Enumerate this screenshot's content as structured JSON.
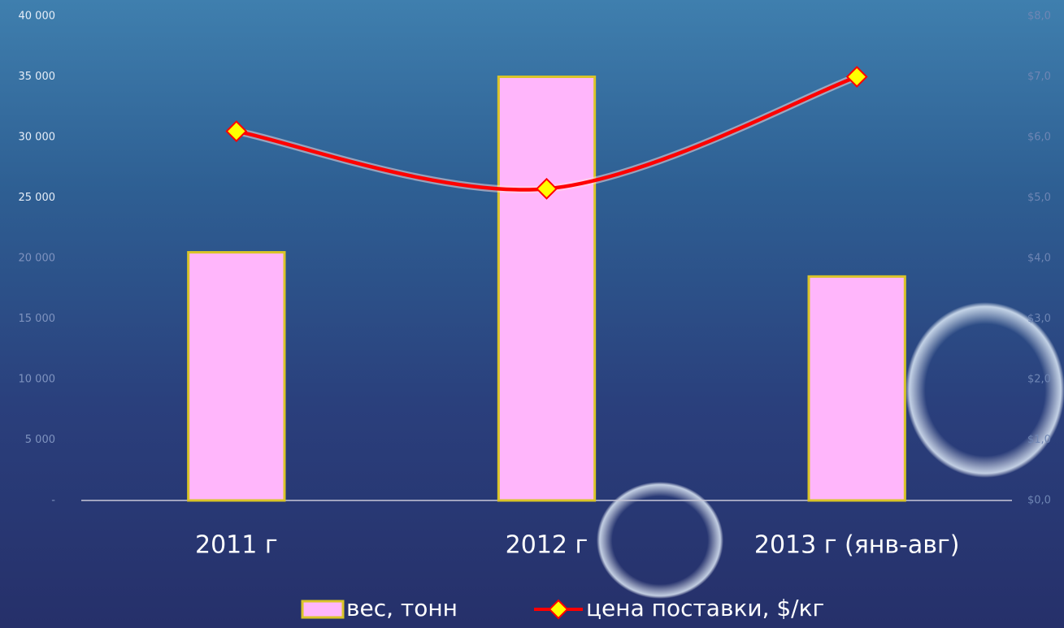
{
  "chart_data": {
    "type": "bar-line",
    "categories": [
      "2011 г",
      "2012 г",
      "2013 г (янв-авг)"
    ],
    "series": [
      {
        "name": "вес, тонн",
        "type": "bar",
        "color": "#ffb6fb",
        "edge_color": "#d9c428",
        "values": [
          20500,
          35000,
          18500
        ]
      },
      {
        "name": "цена поставки, $/кг",
        "type": "line",
        "axis": "y2",
        "color": "#ff0000",
        "marker_color": "#ffff00",
        "smooth": true,
        "values": [
          6.1,
          5.15,
          7.0
        ]
      }
    ],
    "ylim": [
      0,
      40000
    ],
    "yticks": [
      {
        "value": 0,
        "label": "-"
      },
      {
        "value": 5000,
        "label": "5 000"
      },
      {
        "value": 10000,
        "label": "10 000"
      },
      {
        "value": 15000,
        "label": "15 000"
      },
      {
        "value": 20000,
        "label": "20 000"
      },
      {
        "value": 25000,
        "label": "25 000"
      },
      {
        "value": 30000,
        "label": "30 000"
      },
      {
        "value": 35000,
        "label": "35 000"
      },
      {
        "value": 40000,
        "label": "40 000"
      }
    ],
    "y2lim": [
      0,
      8
    ],
    "y2ticks": [
      {
        "value": 0,
        "label": "$0,0"
      },
      {
        "value": 1,
        "label": "$1,0"
      },
      {
        "value": 2,
        "label": "$2,0"
      },
      {
        "value": 3,
        "label": "$3,0"
      },
      {
        "value": 4,
        "label": "$4,0"
      },
      {
        "value": 5,
        "label": "$5,0"
      },
      {
        "value": 6,
        "label": "$6,0"
      },
      {
        "value": 7,
        "label": "$7,0"
      },
      {
        "value": 8,
        "label": "$8,0"
      }
    ],
    "legend": "bottom"
  }
}
